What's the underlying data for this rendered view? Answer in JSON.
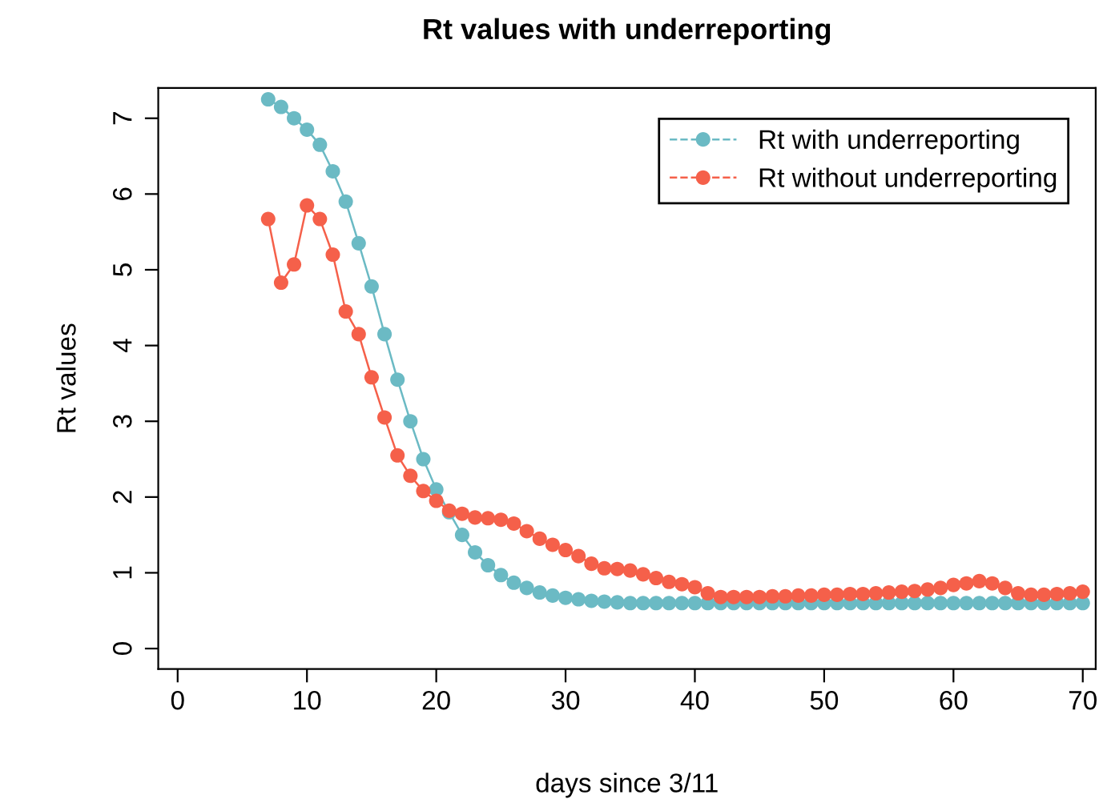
{
  "chart_data": {
    "type": "line",
    "title": "Rt values with underreporting",
    "xlabel": "days since 3/11",
    "ylabel": "Rt values",
    "x": [
      7,
      8,
      9,
      10,
      11,
      12,
      13,
      14,
      15,
      16,
      17,
      18,
      19,
      20,
      21,
      22,
      23,
      24,
      25,
      26,
      27,
      28,
      29,
      30,
      31,
      32,
      33,
      34,
      35,
      36,
      37,
      38,
      39,
      40,
      41,
      42,
      43,
      44,
      45,
      46,
      47,
      48,
      49,
      50,
      51,
      52,
      53,
      54,
      55,
      56,
      57,
      58,
      59,
      60,
      61,
      62,
      63,
      64,
      65,
      66,
      67,
      68,
      69,
      70
    ],
    "series": [
      {
        "name": "Rt with underreporting",
        "color": "#6bbac4",
        "values": [
          7.25,
          7.15,
          7.0,
          6.85,
          6.65,
          6.3,
          5.9,
          5.35,
          4.78,
          4.15,
          3.55,
          3.0,
          2.5,
          2.1,
          1.8,
          1.5,
          1.27,
          1.1,
          0.97,
          0.87,
          0.8,
          0.74,
          0.7,
          0.67,
          0.65,
          0.63,
          0.62,
          0.61,
          0.6,
          0.6,
          0.6,
          0.6,
          0.6,
          0.6,
          0.6,
          0.6,
          0.6,
          0.6,
          0.6,
          0.6,
          0.6,
          0.6,
          0.6,
          0.6,
          0.6,
          0.6,
          0.6,
          0.6,
          0.6,
          0.6,
          0.6,
          0.6,
          0.6,
          0.6,
          0.6,
          0.6,
          0.6,
          0.6,
          0.6,
          0.6,
          0.6,
          0.6,
          0.6,
          0.6
        ]
      },
      {
        "name": "Rt without underreporting",
        "color": "#f5604a",
        "values": [
          5.67,
          4.83,
          5.07,
          5.85,
          5.67,
          5.2,
          4.45,
          4.15,
          3.58,
          3.05,
          2.55,
          2.28,
          2.08,
          1.95,
          1.82,
          1.78,
          1.73,
          1.72,
          1.7,
          1.65,
          1.55,
          1.45,
          1.37,
          1.3,
          1.22,
          1.12,
          1.06,
          1.05,
          1.03,
          0.98,
          0.93,
          0.88,
          0.85,
          0.81,
          0.73,
          0.68,
          0.68,
          0.68,
          0.68,
          0.69,
          0.69,
          0.7,
          0.7,
          0.71,
          0.71,
          0.72,
          0.72,
          0.73,
          0.74,
          0.75,
          0.76,
          0.78,
          0.8,
          0.84,
          0.86,
          0.89,
          0.86,
          0.8,
          0.73,
          0.71,
          0.71,
          0.72,
          0.73,
          0.75
        ]
      }
    ],
    "xlim": [
      -1.5,
      71
    ],
    "ylim": [
      -0.27,
      7.4
    ],
    "xticks": [
      0,
      10,
      20,
      30,
      40,
      50,
      60,
      70
    ],
    "yticks": [
      0,
      1,
      2,
      3,
      4,
      5,
      6,
      7
    ],
    "legend": "top right",
    "marker": "circle",
    "line_style": "solid",
    "grid": false
  }
}
